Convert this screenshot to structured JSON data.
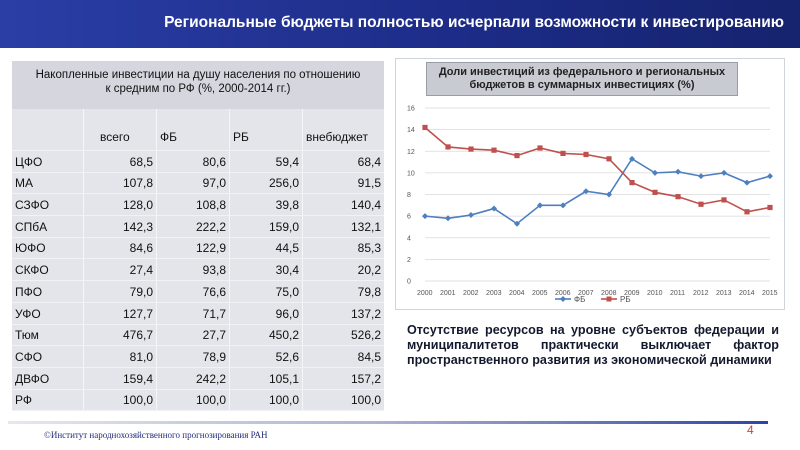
{
  "header": {
    "title": "Региональные бюджеты полностью исчерпали возможности к инвестированию"
  },
  "table": {
    "caption_line1": "Накопленные инвестиции на душу населения по отношению",
    "caption_line2": "к средним по РФ (%, 2000-2014 гг.)",
    "columns": [
      "",
      "всего",
      "ФБ",
      "РБ",
      "внебюджет"
    ],
    "rows": [
      [
        "ЦФО",
        "68,5",
        "80,6",
        "59,4",
        "68,4"
      ],
      [
        "МА",
        "107,8",
        "97,0",
        "256,0",
        "91,5"
      ],
      [
        "СЗФО",
        "128,0",
        "108,8",
        "39,8",
        "140,4"
      ],
      [
        "СПбА",
        "142,3",
        "222,2",
        "159,0",
        "132,1"
      ],
      [
        "ЮФО",
        "84,6",
        "122,9",
        "44,5",
        "85,3"
      ],
      [
        "СКФО",
        "27,4",
        "93,8",
        "30,4",
        "20,2"
      ],
      [
        "ПФО",
        "79,0",
        "76,6",
        "75,0",
        "79,8"
      ],
      [
        "УФО",
        "127,7",
        "71,7",
        "96,0",
        "137,2"
      ],
      [
        "Тюм",
        "476,7",
        "27,7",
        "450,2",
        "526,2"
      ],
      [
        "СФО",
        "81,0",
        "78,9",
        "52,6",
        "84,5"
      ],
      [
        "ДВФО",
        "159,4",
        "242,2",
        "105,1",
        "157,2"
      ],
      [
        "РФ",
        "100,0",
        "100,0",
        "100,0",
        "100,0"
      ]
    ]
  },
  "chart_data": {
    "type": "line",
    "title": "Доли инвестиций из федерального и региональных бюджетов в суммарных инвестициях (%)",
    "x": [
      "2000",
      "2001",
      "2002",
      "2003",
      "2004",
      "2005",
      "2006",
      "2007",
      "2008",
      "2009",
      "2010",
      "2011",
      "2012",
      "2013",
      "2014",
      "2015"
    ],
    "ylim": [
      0,
      16
    ],
    "yticks": [
      0,
      2,
      4,
      6,
      8,
      10,
      12,
      14,
      16
    ],
    "grid": true,
    "legend": "bottom",
    "series": [
      {
        "name": "ФБ",
        "color": "#4f7fbf",
        "values": [
          6.0,
          5.8,
          6.1,
          6.7,
          5.3,
          7.0,
          7.0,
          8.3,
          8.0,
          11.3,
          10.0,
          10.1,
          9.7,
          10.0,
          9.1,
          9.7
        ]
      },
      {
        "name": "РБ",
        "color": "#c0504d",
        "values": [
          14.2,
          12.4,
          12.2,
          12.1,
          11.6,
          12.3,
          11.8,
          11.7,
          11.3,
          9.1,
          8.2,
          7.8,
          7.1,
          7.5,
          6.4,
          6.8
        ]
      }
    ]
  },
  "conclusion": "Отсутствие ресурсов на уровне субъектов федерации и муниципалитетов практически выключает фактор пространственного развития из экономической динамики",
  "footer": {
    "copyright": "©Институт народнохозяйственного прогнозирования РАН",
    "page_number": "4"
  }
}
